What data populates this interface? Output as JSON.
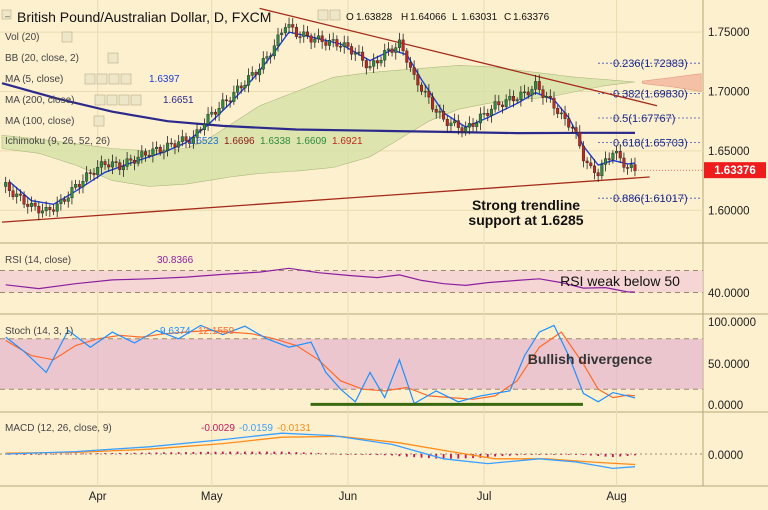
{
  "header": {
    "title": "British Pound/Australian Dollar, D, FXCM",
    "ohlc": [
      {
        "label": "O",
        "value": "1.63828"
      },
      {
        "label": "H",
        "value": "1.64066"
      },
      {
        "label": "L",
        "value": "1.63031"
      },
      {
        "label": "C",
        "value": "1.63376"
      }
    ]
  },
  "colors": {
    "background": "#fdf0cf",
    "up_candle": "#2e8b3e",
    "down_candle": "#c0271f",
    "ma5": "#1f3fd6",
    "ma200": "#2b2a8c",
    "trendline": "#a52a1a",
    "cloud_bull": "#d8e2a8",
    "cloud_bear": "#f4b9a0",
    "rsi": "#8b1fa0",
    "stoch_k": "#1e90ff",
    "stoch_d": "#ff6a2a",
    "macd": "#3aa0ff",
    "signal": "#ff8c1a",
    "hist": "#c2185b",
    "divergence": "#3a6a10",
    "last_price": "#ee1c1c"
  },
  "indicators": [
    {
      "label": "Vol (20)",
      "values": []
    },
    {
      "label": "BB (20, close, 2)",
      "values": []
    },
    {
      "label": "MA (5, close)",
      "values": [
        "1.6397"
      ]
    },
    {
      "label": "MA (200, close)",
      "values": [
        "1.6651"
      ]
    },
    {
      "label": "MA (100, close)",
      "values": []
    },
    {
      "label": "Ichimoku (9, 26, 52, 26)",
      "values": [
        "1.6523",
        "1.6696",
        "1.6338",
        "1.6609",
        "1.6921"
      ]
    }
  ],
  "fib_levels": [
    {
      "ratio": "0.236",
      "label": "0.236(1.72383)",
      "price": 1.72383
    },
    {
      "ratio": "0.382",
      "label": "0.382(1.69830)",
      "price": 1.6983
    },
    {
      "ratio": "0.5",
      "label": "0.5(1.67767)",
      "price": 1.67767
    },
    {
      "ratio": "0.618",
      "label": "0.618(1.65703)",
      "price": 1.65703
    },
    {
      "ratio": "0.886",
      "label": "0.886(1.61017)",
      "price": 1.61017
    }
  ],
  "annotations": {
    "trendline_support": [
      "Strong trendline",
      "support at 1.6285"
    ],
    "rsi_note": "RSI weak below 50",
    "stoch_note": "Bullish divergence"
  },
  "last_price": {
    "value": 1.63376,
    "label": "1.63376"
  },
  "rsi_panel": {
    "label": "RSI (14, close)",
    "value": "30.8366",
    "ticks": [
      "40.0000"
    ]
  },
  "stoch_panel": {
    "label": "Stoch (14, 3, 1)",
    "values": [
      "9.6374",
      "12.1559"
    ],
    "ticks": [
      "100.0000",
      "50.0000",
      "0.0000"
    ]
  },
  "macd_panel": {
    "label": "MACD (12, 26, close, 9)",
    "values": [
      "-0.0029",
      "-0.0159",
      "-0.0131"
    ],
    "ticks": [
      "0.0000"
    ]
  },
  "chart_data": {
    "type": "candlestick",
    "instrument": "British Pound/Australian Dollar",
    "timeframe": "D",
    "x_labels": [
      "Apr",
      "May",
      "Jun",
      "Jul",
      "Aug"
    ],
    "y_ticks": [
      1.75,
      1.7,
      1.65,
      1.6
    ],
    "y_tick_labels": [
      "1.75000",
      "1.70000",
      "1.65000",
      "1.60000"
    ],
    "ylim": [
      1.58,
      1.772
    ],
    "grid": true,
    "price_path": [
      [
        1,
        1.62
      ],
      [
        4,
        1.612
      ],
      [
        8,
        1.603
      ],
      [
        12,
        1.599
      ],
      [
        16,
        1.606
      ],
      [
        20,
        1.62
      ],
      [
        24,
        1.631
      ],
      [
        28,
        1.64
      ],
      [
        32,
        1.637
      ],
      [
        36,
        1.643
      ],
      [
        40,
        1.649
      ],
      [
        44,
        1.652
      ],
      [
        48,
        1.658
      ],
      [
        52,
        1.66
      ],
      [
        55,
        1.675
      ],
      [
        58,
        1.684
      ],
      [
        62,
        1.695
      ],
      [
        66,
        1.708
      ],
      [
        70,
        1.72
      ],
      [
        74,
        1.738
      ],
      [
        77,
        1.757
      ],
      [
        80,
        1.749
      ],
      [
        84,
        1.745
      ],
      [
        88,
        1.742
      ],
      [
        92,
        1.74
      ],
      [
        96,
        1.733
      ],
      [
        100,
        1.72
      ],
      [
        104,
        1.732
      ],
      [
        108,
        1.74
      ],
      [
        110,
        1.728
      ],
      [
        112,
        1.711
      ],
      [
        114,
        1.703
      ],
      [
        117,
        1.688
      ],
      [
        120,
        1.676
      ],
      [
        123,
        1.672
      ],
      [
        126,
        1.668
      ],
      [
        130,
        1.678
      ],
      [
        134,
        1.688
      ],
      [
        138,
        1.693
      ],
      [
        142,
        1.698
      ],
      [
        145,
        1.705
      ],
      [
        148,
        1.695
      ],
      [
        151,
        1.684
      ],
      [
        153,
        1.675
      ],
      [
        155,
        1.671
      ],
      [
        158,
        1.645
      ],
      [
        160,
        1.634
      ],
      [
        162,
        1.632
      ],
      [
        164,
        1.641
      ],
      [
        166,
        1.65
      ],
      [
        168,
        1.643
      ],
      [
        170,
        1.636
      ],
      [
        172,
        1.634
      ]
    ],
    "ma5_path": [
      [
        2,
        1.624
      ],
      [
        8,
        1.608
      ],
      [
        14,
        1.605
      ],
      [
        20,
        1.616
      ],
      [
        28,
        1.632
      ],
      [
        36,
        1.641
      ],
      [
        44,
        1.649
      ],
      [
        50,
        1.657
      ],
      [
        56,
        1.672
      ],
      [
        62,
        1.69
      ],
      [
        68,
        1.71
      ],
      [
        74,
        1.733
      ],
      [
        78,
        1.75
      ],
      [
        84,
        1.746
      ],
      [
        92,
        1.74
      ],
      [
        100,
        1.726
      ],
      [
        106,
        1.735
      ],
      [
        110,
        1.731
      ],
      [
        114,
        1.71
      ],
      [
        120,
        1.682
      ],
      [
        126,
        1.67
      ],
      [
        132,
        1.678
      ],
      [
        140,
        1.69
      ],
      [
        145,
        1.699
      ],
      [
        150,
        1.693
      ],
      [
        154,
        1.678
      ],
      [
        158,
        1.654
      ],
      [
        162,
        1.638
      ],
      [
        166,
        1.642
      ],
      [
        170,
        1.639
      ],
      [
        172,
        1.6397
      ]
    ],
    "ma200_path": [
      [
        0,
        1.707
      ],
      [
        15,
        1.694
      ],
      [
        30,
        1.683
      ],
      [
        45,
        1.675
      ],
      [
        60,
        1.671
      ],
      [
        80,
        1.668
      ],
      [
        100,
        1.667
      ],
      [
        120,
        1.666
      ],
      [
        140,
        1.665
      ],
      [
        160,
        1.6652
      ],
      [
        172,
        1.6651
      ]
    ],
    "cloud_upper": [
      [
        0,
        1.663
      ],
      [
        10,
        1.66
      ],
      [
        20,
        1.656
      ],
      [
        30,
        1.652
      ],
      [
        40,
        1.65
      ],
      [
        50,
        1.652
      ],
      [
        56,
        1.66
      ],
      [
        62,
        1.672
      ],
      [
        70,
        1.688
      ],
      [
        80,
        1.7
      ],
      [
        90,
        1.712
      ],
      [
        100,
        1.716
      ],
      [
        108,
        1.718
      ],
      [
        116,
        1.72
      ],
      [
        124,
        1.722
      ],
      [
        132,
        1.721
      ],
      [
        140,
        1.718
      ],
      [
        148,
        1.715
      ],
      [
        156,
        1.712
      ],
      [
        164,
        1.71
      ],
      [
        172,
        1.708
      ],
      [
        176,
        1.706
      ],
      [
        182,
        1.704
      ],
      [
        190,
        1.7
      ]
    ],
    "cloud_lower": [
      [
        0,
        1.652
      ],
      [
        10,
        1.648
      ],
      [
        20,
        1.638
      ],
      [
        30,
        1.625
      ],
      [
        40,
        1.62
      ],
      [
        50,
        1.622
      ],
      [
        56,
        1.625
      ],
      [
        62,
        1.628
      ],
      [
        70,
        1.631
      ],
      [
        80,
        1.633
      ],
      [
        90,
        1.636
      ],
      [
        100,
        1.645
      ],
      [
        108,
        1.66
      ],
      [
        116,
        1.675
      ],
      [
        124,
        1.685
      ],
      [
        132,
        1.69
      ],
      [
        140,
        1.693
      ],
      [
        148,
        1.695
      ],
      [
        156,
        1.7
      ],
      [
        164,
        1.705
      ],
      [
        172,
        1.708
      ],
      [
        180,
        1.711
      ],
      [
        190,
        1.715
      ]
    ],
    "trendline_upper": [
      [
        70,
        1.77
      ],
      [
        178,
        1.688
      ]
    ],
    "trendline_lower": [
      [
        0,
        1.59
      ],
      [
        176,
        1.628
      ]
    ],
    "rsi": [
      [
        1,
        44
      ],
      [
        10,
        37
      ],
      [
        20,
        46
      ],
      [
        30,
        53
      ],
      [
        40,
        55
      ],
      [
        50,
        58
      ],
      [
        60,
        63
      ],
      [
        70,
        67
      ],
      [
        78,
        74
      ],
      [
        86,
        66
      ],
      [
        94,
        61
      ],
      [
        102,
        57
      ],
      [
        108,
        62
      ],
      [
        114,
        52
      ],
      [
        120,
        46
      ],
      [
        126,
        43
      ],
      [
        132,
        48
      ],
      [
        140,
        52
      ],
      [
        146,
        55
      ],
      [
        152,
        48
      ],
      [
        158,
        38
      ],
      [
        164,
        39
      ],
      [
        170,
        31
      ],
      [
        172,
        30.8
      ]
    ],
    "rsi_band": [
      30,
      70
    ],
    "stoch_k": [
      [
        1,
        82
      ],
      [
        6,
        65
      ],
      [
        12,
        40
      ],
      [
        18,
        90
      ],
      [
        24,
        70
      ],
      [
        30,
        88
      ],
      [
        36,
        75
      ],
      [
        42,
        90
      ],
      [
        48,
        80
      ],
      [
        54,
        96
      ],
      [
        60,
        85
      ],
      [
        66,
        95
      ],
      [
        72,
        80
      ],
      [
        78,
        70
      ],
      [
        84,
        76
      ],
      [
        88,
        40
      ],
      [
        92,
        20
      ],
      [
        96,
        5
      ],
      [
        100,
        40
      ],
      [
        104,
        10
      ],
      [
        108,
        55
      ],
      [
        112,
        3
      ],
      [
        118,
        18
      ],
      [
        124,
        5
      ],
      [
        130,
        12
      ],
      [
        138,
        18
      ],
      [
        142,
        60
      ],
      [
        146,
        88
      ],
      [
        150,
        96
      ],
      [
        154,
        60
      ],
      [
        158,
        15
      ],
      [
        162,
        5
      ],
      [
        166,
        16
      ],
      [
        170,
        12
      ],
      [
        172,
        9.6
      ]
    ],
    "stoch_d": [
      [
        1,
        78
      ],
      [
        8,
        60
      ],
      [
        14,
        55
      ],
      [
        20,
        72
      ],
      [
        26,
        80
      ],
      [
        32,
        84
      ],
      [
        38,
        82
      ],
      [
        44,
        86
      ],
      [
        50,
        88
      ],
      [
        56,
        90
      ],
      [
        62,
        88
      ],
      [
        68,
        86
      ],
      [
        74,
        80
      ],
      [
        80,
        72
      ],
      [
        86,
        55
      ],
      [
        92,
        30
      ],
      [
        98,
        20
      ],
      [
        104,
        18
      ],
      [
        110,
        22
      ],
      [
        116,
        12
      ],
      [
        122,
        10
      ],
      [
        128,
        8
      ],
      [
        134,
        12
      ],
      [
        140,
        30
      ],
      [
        146,
        70
      ],
      [
        152,
        88
      ],
      [
        158,
        50
      ],
      [
        162,
        20
      ],
      [
        166,
        10
      ],
      [
        170,
        13
      ],
      [
        172,
        12.2
      ]
    ],
    "stoch_band": [
      20,
      80
    ],
    "divergence_line": [
      [
        92,
        2
      ],
      [
        172,
        2
      ]
    ],
    "macd_line": [
      [
        1,
        0.0
      ],
      [
        20,
        0.003
      ],
      [
        40,
        0.009
      ],
      [
        60,
        0.018
      ],
      [
        76,
        0.026
      ],
      [
        90,
        0.023
      ],
      [
        106,
        0.012
      ],
      [
        120,
        -0.006
      ],
      [
        132,
        -0.012
      ],
      [
        146,
        -0.006
      ],
      [
        156,
        -0.01
      ],
      [
        166,
        -0.018
      ],
      [
        172,
        -0.0159
      ]
    ],
    "signal_line": [
      [
        1,
        0.001
      ],
      [
        20,
        0.002
      ],
      [
        40,
        0.006
      ],
      [
        60,
        0.013
      ],
      [
        76,
        0.021
      ],
      [
        92,
        0.022
      ],
      [
        108,
        0.014
      ],
      [
        122,
        0.003
      ],
      [
        134,
        -0.006
      ],
      [
        148,
        -0.006
      ],
      [
        160,
        -0.01
      ],
      [
        172,
        -0.0131
      ]
    ],
    "macd_hist_sign": "alternating small around zero"
  }
}
